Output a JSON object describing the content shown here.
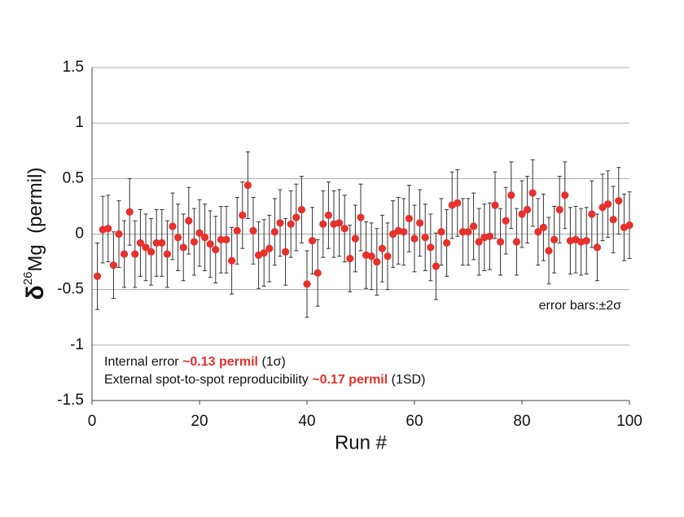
{
  "chart_data": {
    "type": "scatter",
    "y_label": {
      "symbol": "δ",
      "sup": "26",
      "rest": "Mg  (permil)"
    },
    "x_label": "Run #",
    "annotation": "error bars:±2σ",
    "notes": [
      {
        "before": "Internal error ",
        "highlight": "~0.13 permil",
        "after": " (1σ)"
      },
      {
        "before": "External spot-to-spot reproducibility ",
        "highlight": "~0.17 permil",
        "after": " (1SD)"
      }
    ],
    "highlight_color": "#e8302c",
    "xlim": [
      0,
      100
    ],
    "xticks": [
      0,
      20,
      40,
      60,
      80,
      100
    ],
    "ylim": [
      -1.5,
      1.5
    ],
    "yticks": [
      1.5,
      1,
      0.5,
      0,
      -0.5,
      -1,
      -1.5
    ],
    "grid": true,
    "error": 0.3,
    "series": [
      {
        "color": "#e8302c",
        "x": [
          1,
          2,
          3,
          4,
          5,
          6,
          7,
          8,
          9,
          10,
          11,
          12,
          13,
          14,
          15,
          16,
          17,
          18,
          19,
          20,
          21,
          22,
          23,
          24,
          25,
          26,
          27,
          28,
          29,
          30,
          31,
          32,
          33,
          34,
          35,
          36,
          37,
          38,
          39,
          40,
          41,
          42,
          43,
          44,
          45,
          46,
          47,
          48,
          49,
          50,
          51,
          52,
          53,
          54,
          55,
          56,
          57,
          58,
          59,
          60,
          61,
          62,
          63,
          64,
          65,
          66,
          67,
          68,
          69,
          70,
          71,
          72,
          73,
          74,
          75,
          76,
          77,
          78,
          79,
          80,
          81,
          82,
          83,
          84,
          85,
          86,
          87,
          88,
          89,
          90,
          91,
          92,
          93,
          94,
          95,
          96,
          97,
          98,
          99,
          100
        ],
        "values": [
          -0.38,
          0.04,
          0.05,
          -0.28,
          0.0,
          -0.18,
          0.2,
          -0.18,
          -0.08,
          -0.12,
          -0.16,
          -0.08,
          -0.08,
          -0.18,
          0.07,
          -0.03,
          -0.12,
          0.12,
          -0.07,
          0.01,
          -0.03,
          -0.09,
          -0.14,
          -0.05,
          -0.05,
          -0.24,
          0.03,
          0.17,
          0.44,
          0.03,
          -0.19,
          -0.17,
          -0.13,
          0.02,
          0.1,
          -0.16,
          0.09,
          0.15,
          0.22,
          -0.45,
          -0.06,
          -0.35,
          0.09,
          0.17,
          0.09,
          0.1,
          0.05,
          -0.22,
          -0.04,
          0.15,
          -0.19,
          -0.2,
          -0.25,
          -0.13,
          -0.2,
          0.0,
          0.03,
          0.02,
          0.14,
          -0.04,
          0.1,
          -0.03,
          -0.12,
          -0.29,
          0.02,
          -0.08,
          0.26,
          0.28,
          0.02,
          0.02,
          0.07,
          -0.07,
          -0.03,
          -0.02,
          0.26,
          -0.07,
          0.12,
          0.35,
          -0.07,
          0.18,
          0.22,
          0.37,
          0.02,
          0.06,
          -0.15,
          -0.05,
          0.22,
          0.35,
          -0.06,
          -0.05,
          -0.07,
          -0.06,
          0.18,
          -0.12,
          0.24,
          0.27,
          0.13,
          0.3,
          0.06,
          0.08
        ]
      }
    ]
  }
}
